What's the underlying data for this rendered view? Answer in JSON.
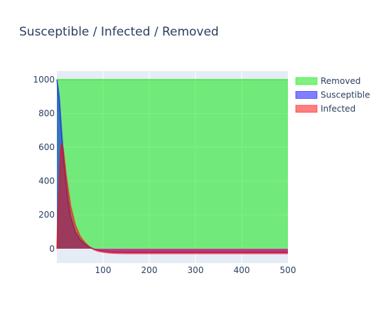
{
  "chart_data": {
    "type": "area",
    "title": "Susceptible / Infected / Removed",
    "xlabel": "",
    "ylabel": "",
    "xlim": [
      0,
      500
    ],
    "ylim": [
      -85,
      1050
    ],
    "x_ticks": [
      100,
      200,
      300,
      400,
      500
    ],
    "y_ticks": [
      0,
      200,
      400,
      600,
      800,
      1000
    ],
    "grid": true,
    "legend_position": "top-right",
    "series": [
      {
        "name": "Removed",
        "color": "#00e600",
        "x": [
          0,
          500
        ],
        "values": [
          1000,
          1000
        ]
      },
      {
        "name": "Susceptible",
        "color": "#0000ff",
        "x": [
          0,
          5,
          10,
          15,
          20,
          25,
          30,
          40,
          50,
          60,
          70,
          80,
          90,
          100,
          110,
          120,
          130,
          150,
          200,
          300,
          400,
          500
        ],
        "values": [
          1000,
          900,
          700,
          520,
          380,
          270,
          190,
          100,
          55,
          30,
          10,
          -2,
          -10,
          -14,
          -18,
          -20,
          -21,
          -22,
          -22,
          -22,
          -22,
          -22
        ]
      },
      {
        "name": "Infected",
        "color": "#ff0000",
        "x": [
          0,
          5,
          8,
          10,
          13,
          15,
          20,
          25,
          30,
          40,
          50,
          60,
          70,
          80,
          90,
          100,
          110,
          120,
          130,
          150,
          200,
          300,
          400,
          500
        ],
        "values": [
          0,
          380,
          580,
          620,
          600,
          560,
          440,
          340,
          250,
          140,
          75,
          38,
          12,
          -5,
          -15,
          -20,
          -24,
          -26,
          -27,
          -28,
          -28,
          -28,
          -28,
          -28
        ]
      }
    ]
  }
}
